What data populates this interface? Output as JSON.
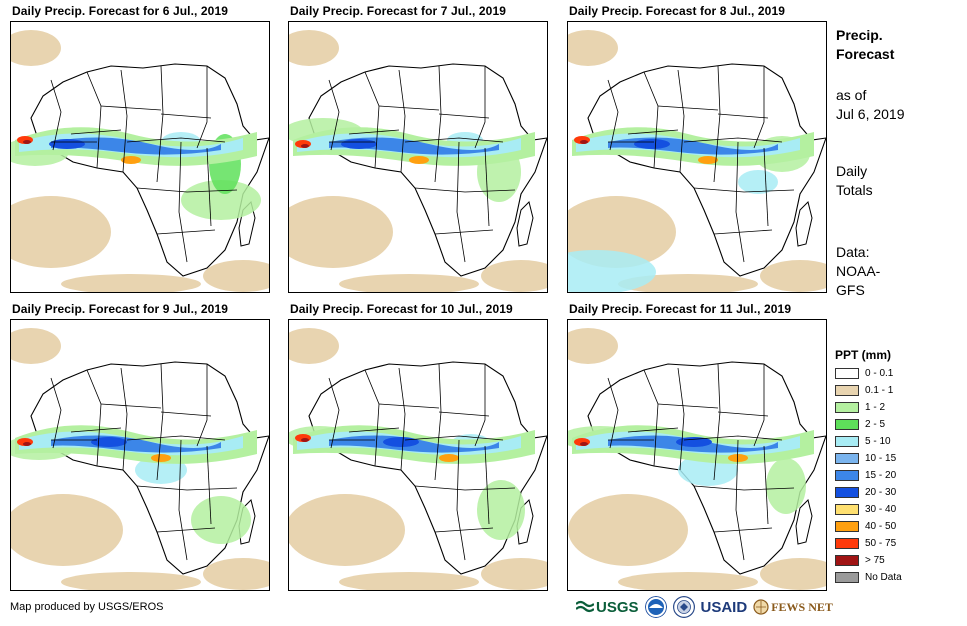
{
  "panels": [
    {
      "title": "Daily Precip. Forecast for 6 Jul., 2019"
    },
    {
      "title": "Daily Precip. Forecast for 7 Jul., 2019"
    },
    {
      "title": "Daily Precip. Forecast for 8 Jul., 2019"
    },
    {
      "title": "Daily Precip. Forecast for 9 Jul., 2019"
    },
    {
      "title": "Daily Precip. Forecast for 10 Jul., 2019"
    },
    {
      "title": "Daily Precip. Forecast for 11 Jul., 2019"
    }
  ],
  "side": {
    "title_line1": "Precip.",
    "title_line2": "Forecast",
    "asof_line1": "as of",
    "asof_line2": "Jul 6, 2019",
    "totals_line1": "Daily",
    "totals_line2": "Totals",
    "data_line1": "Data:",
    "data_line2": "NOAA-",
    "data_line3": "GFS"
  },
  "legend": {
    "title": "PPT (mm)",
    "items": [
      {
        "label": "0 - 0.1",
        "color": "#ffffff"
      },
      {
        "label": "0.1 - 1",
        "color": "#e8d4b0"
      },
      {
        "label": "1 - 2",
        "color": "#b4f0a0"
      },
      {
        "label": "2 - 5",
        "color": "#5ee05a"
      },
      {
        "label": "5 - 10",
        "color": "#a8ecf4"
      },
      {
        "label": "10 - 15",
        "color": "#7ab4ee"
      },
      {
        "label": "15 - 20",
        "color": "#3c86e8"
      },
      {
        "label": "20 - 30",
        "color": "#1450e0"
      },
      {
        "label": "30 - 40",
        "color": "#ffe070"
      },
      {
        "label": "40 - 50",
        "color": "#ffa010"
      },
      {
        "label": "50 - 75",
        "color": "#ff3a0a"
      },
      {
        "label": "> 75",
        "color": "#a01414"
      },
      {
        "label": "No Data",
        "color": "#9a9a9a"
      }
    ]
  },
  "footer": {
    "credit": "Map produced by USGS/EROS"
  },
  "logos": {
    "usgs": "USGS",
    "usaid": "USAID",
    "fews": "FEWS NET"
  }
}
